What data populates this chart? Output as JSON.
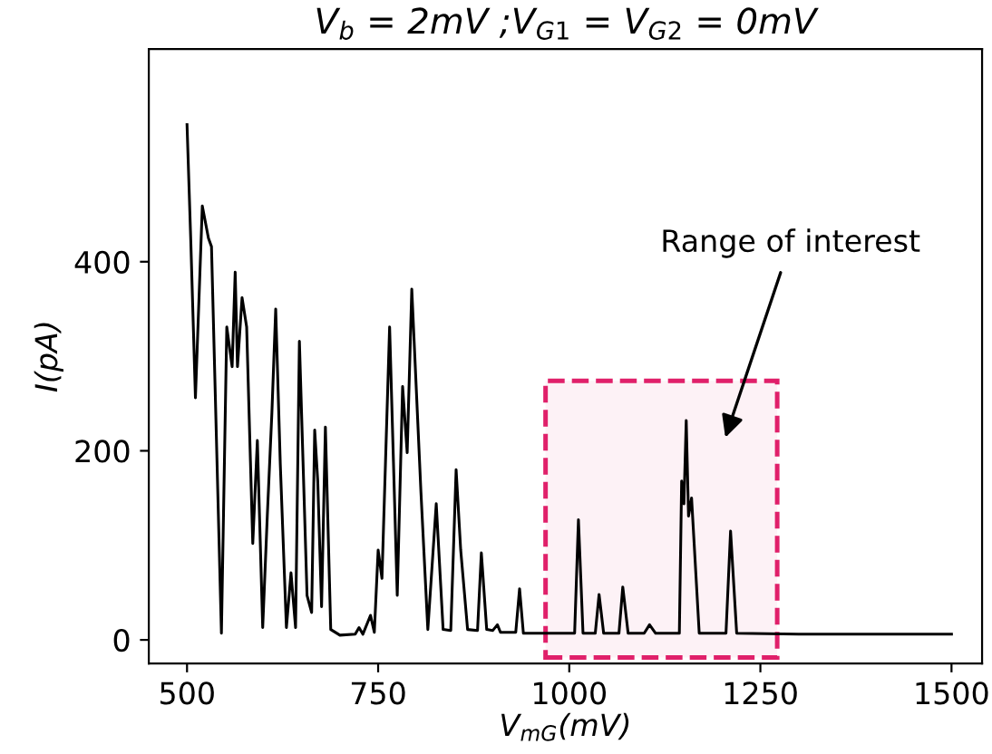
{
  "chart_data": {
    "type": "line",
    "title": "V$_{b}$ = 2mV ;V$_{G1}$ = V$_{G2}$ = 0mV",
    "xlabel": "V$_{mG}$(mV)",
    "ylabel": "I(pA)",
    "x": [
      500,
      505,
      511,
      520,
      528,
      532,
      545,
      552,
      559,
      563,
      566,
      572,
      578,
      586,
      592,
      599,
      605,
      611,
      616,
      622,
      630,
      636,
      642,
      647,
      657,
      663,
      667,
      671,
      676,
      681,
      688,
      700,
      720,
      725,
      730,
      740,
      745,
      750,
      755,
      765,
      775,
      782,
      788,
      794,
      806,
      815,
      826,
      835,
      845,
      852,
      858,
      867,
      880,
      885,
      892,
      900,
      906,
      910,
      930,
      935,
      940,
      968,
      1007,
      1012,
      1018,
      1034,
      1039,
      1045,
      1065,
      1070,
      1077,
      1098,
      1105,
      1113,
      1140,
      1144,
      1147,
      1150,
      1153,
      1156,
      1160,
      1170,
      1205,
      1211,
      1219,
      1300,
      1400,
      1500
    ],
    "series": [
      {
        "color": "#000000",
        "values": [
          545,
          420,
          256,
          459,
          425,
          416,
          7,
          331,
          289,
          389,
          289,
          362,
          331,
          102,
          211,
          13,
          131,
          240,
          350,
          186,
          13,
          71,
          13,
          316,
          47,
          29,
          222,
          168,
          35,
          225,
          11,
          5,
          6,
          13,
          6,
          26,
          8,
          95,
          65,
          331,
          47,
          268,
          198,
          371,
          156,
          11,
          144,
          11,
          10,
          180,
          95,
          11,
          10,
          92,
          11,
          10,
          16,
          8,
          8,
          54,
          7,
          7,
          7,
          127,
          7,
          7,
          48,
          7,
          7,
          56,
          7,
          7,
          16,
          7,
          7,
          7,
          168,
          144,
          232,
          131,
          150,
          7,
          7,
          115,
          7,
          6,
          6,
          6
        ]
      }
    ],
    "xlim": [
      450,
      1540
    ],
    "ylim": [
      -25,
      625
    ],
    "xticks": [
      500,
      750,
      1000,
      1250,
      1500
    ],
    "yticks": [
      0,
      200,
      400
    ],
    "bands": [
      {
        "axis": "x",
        "from": 969,
        "to": 1272,
        "color": "#e0206a"
      }
    ],
    "annotations": [
      "Range of interest"
    ],
    "grid": false,
    "legend": false,
    "marker": "none",
    "line_style": "solid"
  }
}
